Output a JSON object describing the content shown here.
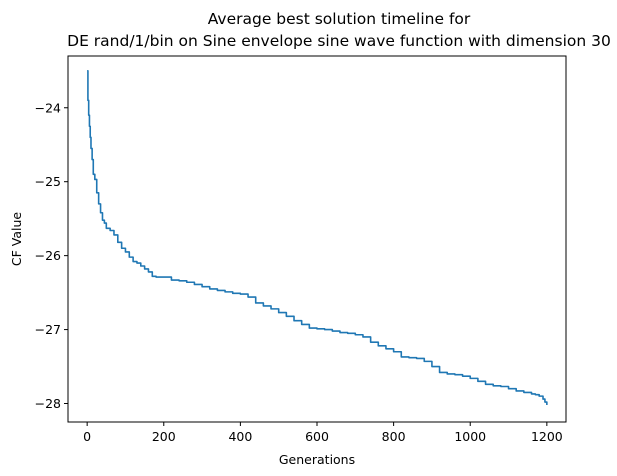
{
  "figure": {
    "title_line1": "Average best solution timeline for",
    "title_line2": "DE rand/1/bin on Sine envelope sine wave function with dimension 30",
    "xlabel": "Generations",
    "ylabel": "CF Value"
  },
  "chart_data": {
    "type": "line",
    "title": "Average best solution timeline for DE rand/1/bin on Sine envelope sine wave function with dimension 30",
    "xlabel": "Generations",
    "ylabel": "CF Value",
    "xlim": [
      -50,
      1250
    ],
    "ylim": [
      -28.25,
      -23.3
    ],
    "xticks": [
      0,
      200,
      400,
      600,
      800,
      1000,
      1200
    ],
    "xtick_labels": [
      "0",
      "200",
      "400",
      "600",
      "800",
      "1000",
      "1200"
    ],
    "yticks": [
      -24,
      -25,
      -26,
      -27,
      -28
    ],
    "ytick_labels": [
      "−24",
      "−25",
      "−26",
      "−27",
      "−28"
    ],
    "grid": false,
    "legend": "none",
    "line_color": "#1f77b4",
    "series": [
      {
        "x": [
          0,
          2,
          4,
          6,
          8,
          10,
          13,
          16,
          20,
          25,
          30,
          35,
          40,
          45,
          50,
          60,
          70,
          80,
          90,
          100,
          110,
          120,
          130,
          140,
          150,
          160,
          170,
          180,
          190,
          200,
          220,
          240,
          260,
          280,
          300,
          320,
          340,
          360,
          380,
          400,
          420,
          440,
          460,
          480,
          500,
          520,
          540,
          560,
          580,
          600,
          620,
          640,
          660,
          680,
          700,
          720,
          740,
          760,
          780,
          800,
          820,
          840,
          860,
          880,
          900,
          920,
          940,
          960,
          980,
          1000,
          1020,
          1040,
          1060,
          1080,
          1100,
          1120,
          1140,
          1160,
          1170,
          1180,
          1190,
          1195,
          1200
        ],
        "y": [
          -23.5,
          -23.9,
          -24.1,
          -24.25,
          -24.4,
          -24.55,
          -24.7,
          -24.9,
          -24.97,
          -25.15,
          -25.3,
          -25.42,
          -25.52,
          -25.56,
          -25.63,
          -25.66,
          -25.72,
          -25.82,
          -25.9,
          -25.95,
          -26.02,
          -26.08,
          -26.1,
          -26.14,
          -26.18,
          -26.22,
          -26.28,
          -26.29,
          -26.29,
          -26.29,
          -26.33,
          -26.34,
          -26.36,
          -26.39,
          -26.42,
          -26.45,
          -26.47,
          -26.49,
          -26.51,
          -26.52,
          -26.56,
          -26.64,
          -26.68,
          -26.72,
          -26.77,
          -26.82,
          -26.88,
          -26.93,
          -26.98,
          -26.99,
          -27.0,
          -27.02,
          -27.04,
          -27.05,
          -27.07,
          -27.1,
          -27.17,
          -27.22,
          -27.26,
          -27.3,
          -27.37,
          -27.38,
          -27.39,
          -27.43,
          -27.5,
          -27.58,
          -27.6,
          -27.61,
          -27.63,
          -27.66,
          -27.7,
          -27.74,
          -27.76,
          -27.77,
          -27.8,
          -27.83,
          -27.85,
          -27.87,
          -27.88,
          -27.9,
          -27.94,
          -27.98,
          -28.02
        ]
      }
    ]
  }
}
